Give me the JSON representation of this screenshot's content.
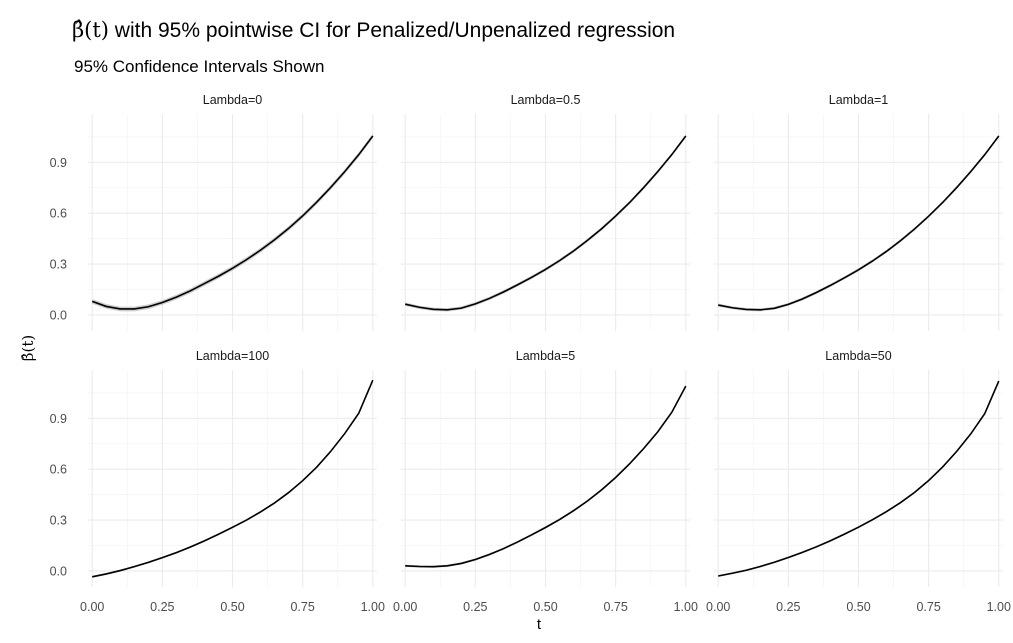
{
  "title": {
    "math": "β̂(t)",
    "text": " with 95% pointwise CI for Penalized/Unpenalized regression"
  },
  "subtitle": "95% Confidence Intervals Shown",
  "xlabel": "t",
  "ylabel": "β̂(t)",
  "colors": {
    "line": "#000000",
    "band": "#bdbdbd",
    "grid": "#ebebeb",
    "tick_text": "#4d4d4d"
  },
  "chart_data": {
    "type": "line",
    "layout": "facet-grid 2 rows x 3 columns, shared axes",
    "x_ticks": [
      0.0,
      0.25,
      0.5,
      0.75,
      1.0
    ],
    "x_tick_labels": [
      "0.00",
      "0.25",
      "0.50",
      "0.75",
      "1.00"
    ],
    "xlim": [
      -0.015,
      1.015
    ],
    "y_ticks": [
      0.0,
      0.3,
      0.6,
      0.9
    ],
    "y_tick_labels": [
      "0.0",
      "0.3",
      "0.6",
      "0.9"
    ],
    "ylim": [
      -0.095,
      1.185
    ],
    "grid": true,
    "x": [
      0.0,
      0.05,
      0.1,
      0.15,
      0.2,
      0.25,
      0.3,
      0.35,
      0.4,
      0.45,
      0.5,
      0.55,
      0.6,
      0.65,
      0.7,
      0.75,
      0.8,
      0.85,
      0.9,
      0.95,
      1.0
    ],
    "panels": [
      {
        "label": "Lambda=0",
        "y": [
          0.08,
          0.05,
          0.035,
          0.035,
          0.048,
          0.073,
          0.105,
          0.142,
          0.185,
          0.228,
          0.275,
          0.326,
          0.382,
          0.443,
          0.51,
          0.584,
          0.665,
          0.752,
          0.845,
          0.945,
          1.055
        ],
        "ci_half_width": 0.014
      },
      {
        "label": "Lambda=0.5",
        "y": [
          0.063,
          0.045,
          0.033,
          0.03,
          0.04,
          0.065,
          0.097,
          0.135,
          0.177,
          0.221,
          0.268,
          0.32,
          0.377,
          0.44,
          0.508,
          0.583,
          0.663,
          0.751,
          0.845,
          0.945,
          1.055
        ],
        "ci_half_width": 0.01
      },
      {
        "label": "Lambda=1",
        "y": [
          0.058,
          0.042,
          0.032,
          0.03,
          0.039,
          0.062,
          0.094,
          0.132,
          0.174,
          0.219,
          0.266,
          0.318,
          0.375,
          0.438,
          0.507,
          0.582,
          0.663,
          0.751,
          0.845,
          0.945,
          1.055
        ],
        "ci_half_width": 0.009
      },
      {
        "label": "Lambda=100",
        "y": [
          -0.035,
          -0.018,
          0.002,
          0.025,
          0.05,
          0.078,
          0.108,
          0.141,
          0.177,
          0.216,
          0.257,
          0.3,
          0.348,
          0.401,
          0.462,
          0.532,
          0.612,
          0.705,
          0.81,
          0.93,
          1.125
        ],
        "ci_half_width": 0.006
      },
      {
        "label": "Lambda=5",
        "y": [
          0.03,
          0.026,
          0.025,
          0.03,
          0.044,
          0.067,
          0.097,
          0.131,
          0.17,
          0.212,
          0.256,
          0.303,
          0.355,
          0.413,
          0.478,
          0.551,
          0.632,
          0.722,
          0.82,
          0.935,
          1.09
        ],
        "ci_half_width": 0.007
      },
      {
        "label": "Lambda=50",
        "y": [
          -0.03,
          -0.014,
          0.004,
          0.026,
          0.051,
          0.079,
          0.109,
          0.142,
          0.178,
          0.217,
          0.258,
          0.302,
          0.35,
          0.403,
          0.463,
          0.533,
          0.613,
          0.705,
          0.808,
          0.928,
          1.12
        ],
        "ci_half_width": 0.006
      }
    ]
  }
}
